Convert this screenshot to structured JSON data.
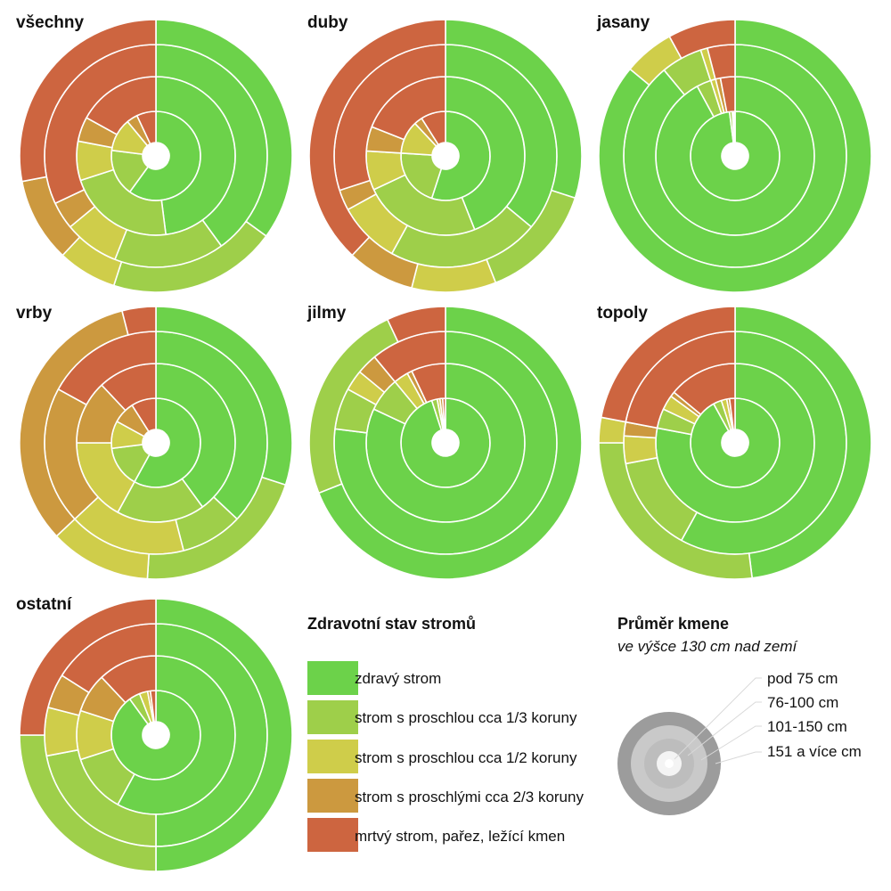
{
  "colors": {
    "healthy": "#6cd24a",
    "third": "#9ecf4a",
    "half": "#cfcd4a",
    "two_thirds": "#cc993f",
    "dead": "#cd6540",
    "ring_separator": "#ffffff"
  },
  "legend": {
    "title": "Zdravotní stav stromů",
    "items": [
      {
        "key": "healthy",
        "label": "zdravý strom"
      },
      {
        "key": "third",
        "label": "strom s proschlou cca 1/3 koruny"
      },
      {
        "key": "half",
        "label": "strom s proschlou cca 1/2 koruny"
      },
      {
        "key": "two_thirds",
        "label": "strom s proschlými cca 2/3 koruny"
      },
      {
        "key": "dead",
        "label": "mrtvý strom, pařez, ležící kmen"
      }
    ]
  },
  "size_legend": {
    "title": "Průměr kmene",
    "subtitle": "ve výšce 130 cm nad zemí",
    "rings": [
      {
        "label": "pod 75 cm",
        "color": "#f4f4f4"
      },
      {
        "label": "76-100 cm",
        "color": "#bdbdbd"
      },
      {
        "label": "101-150 cm",
        "color": "#c9c9c9"
      },
      {
        "label": "151 a více cm",
        "color": "#9c9c9c"
      }
    ]
  },
  "chart_data": {
    "type": "multi-ring-donut",
    "note_rings_order": [
      "pod 75 cm",
      "76-100 cm",
      "101-150 cm",
      "151 a více cm"
    ],
    "categories": [
      "zdravý strom",
      "strom s proschlou cca 1/3 koruny",
      "strom s proschlou cca 1/2 koruny",
      "strom s proschlými cca 2/3 koruny",
      "mrtvý strom, pařez, ležící kmen"
    ],
    "panels": [
      {
        "title": "všechny",
        "rings": [
          [
            0.6,
            0.17,
            0.12,
            0.04,
            0.07
          ],
          [
            0.48,
            0.22,
            0.08,
            0.05,
            0.17
          ],
          [
            0.4,
            0.16,
            0.08,
            0.04,
            0.32
          ],
          [
            0.35,
            0.2,
            0.07,
            0.1,
            0.28
          ]
        ]
      },
      {
        "title": "duby",
        "rings": [
          [
            0.55,
            0.21,
            0.12,
            0.03,
            0.09
          ],
          [
            0.44,
            0.24,
            0.08,
            0.05,
            0.19
          ],
          [
            0.36,
            0.22,
            0.09,
            0.03,
            0.3
          ],
          [
            0.3,
            0.14,
            0.1,
            0.08,
            0.38
          ]
        ]
      },
      {
        "title": "jasany",
        "rings": [
          [
            0.98,
            0.01,
            0.005,
            0.0,
            0.005
          ],
          [
            0.93,
            0.03,
            0.01,
            0.01,
            0.03
          ],
          [
            0.89,
            0.06,
            0.01,
            0.0,
            0.04
          ],
          [
            0.86,
            0.0,
            0.06,
            0.0,
            0.08
          ]
        ]
      },
      {
        "title": "vrby",
        "rings": [
          [
            0.58,
            0.15,
            0.1,
            0.08,
            0.09
          ],
          [
            0.4,
            0.18,
            0.17,
            0.13,
            0.12
          ],
          [
            0.37,
            0.09,
            0.17,
            0.2,
            0.17
          ],
          [
            0.3,
            0.21,
            0.12,
            0.33,
            0.04
          ]
        ]
      },
      {
        "title": "jilmy",
        "rings": [
          [
            0.95,
            0.02,
            0.01,
            0.01,
            0.01
          ],
          [
            0.82,
            0.07,
            0.03,
            0.01,
            0.07
          ],
          [
            0.77,
            0.06,
            0.03,
            0.03,
            0.11
          ],
          [
            0.69,
            0.24,
            0.0,
            0.0,
            0.07
          ]
        ]
      },
      {
        "title": "topoly",
        "rings": [
          [
            0.92,
            0.03,
            0.02,
            0.01,
            0.02
          ],
          [
            0.78,
            0.04,
            0.03,
            0.01,
            0.14
          ],
          [
            0.58,
            0.14,
            0.04,
            0.02,
            0.22
          ],
          [
            0.48,
            0.27,
            0.03,
            0.0,
            0.22
          ]
        ]
      },
      {
        "title": "ostatní",
        "rings": [
          [
            0.9,
            0.04,
            0.03,
            0.01,
            0.02
          ],
          [
            0.58,
            0.12,
            0.1,
            0.08,
            0.12
          ],
          [
            0.5,
            0.22,
            0.07,
            0.05,
            0.16
          ],
          [
            0.5,
            0.25,
            0.0,
            0.0,
            0.25
          ]
        ]
      }
    ]
  }
}
